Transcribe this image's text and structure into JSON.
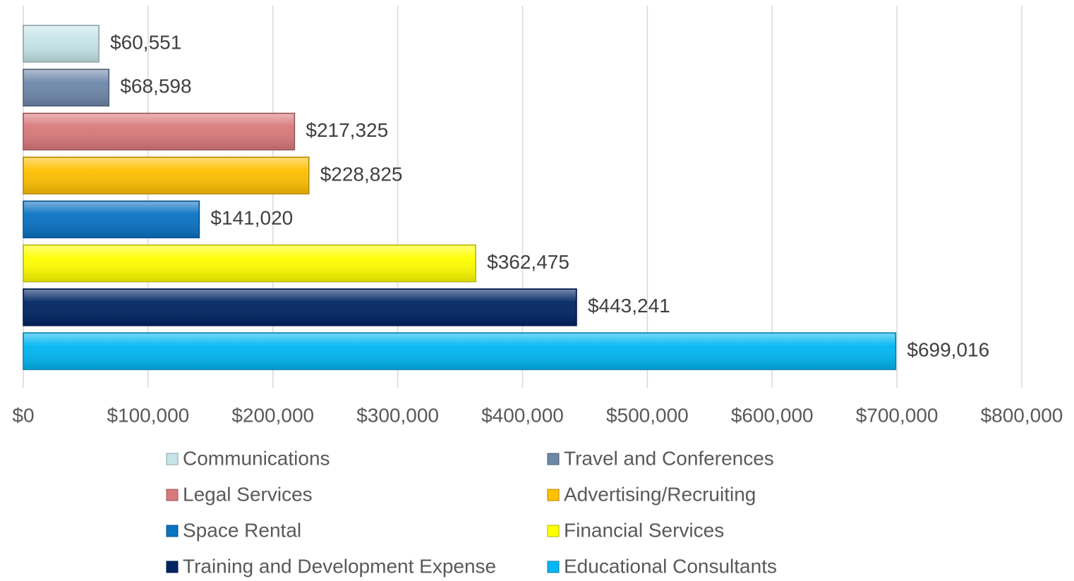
{
  "chart_data": {
    "type": "bar",
    "orientation": "horizontal",
    "series": [
      {
        "name": "Communications",
        "color": "#c6e5e8",
        "values": [
          60551
        ],
        "value_labels": [
          "$60,551"
        ]
      },
      {
        "name": "Travel and Conferences",
        "color": "#6e87a9",
        "values": [
          68598
        ],
        "value_labels": [
          "$68,598"
        ]
      },
      {
        "name": "Legal Services",
        "color": "#d9797b",
        "values": [
          217325
        ],
        "value_labels": [
          "$217,325"
        ]
      },
      {
        "name": "Advertising/Recruiting",
        "color": "#ffc000",
        "values": [
          228825
        ],
        "value_labels": [
          "$228,825"
        ]
      },
      {
        "name": "Space Rental",
        "color": "#0a72c2",
        "values": [
          141020
        ],
        "value_labels": [
          "$141,020"
        ]
      },
      {
        "name": "Financial Services",
        "color": "#ffff00",
        "values": [
          362475
        ],
        "value_labels": [
          "$362,475"
        ]
      },
      {
        "name": "Training and Development Expense",
        "color": "#002463",
        "values": [
          443241
        ],
        "value_labels": [
          "$443,241"
        ]
      },
      {
        "name": "Educational Consultants",
        "color": "#00b6f2",
        "values": [
          699016
        ],
        "value_labels": [
          "$699,016"
        ]
      }
    ],
    "xlim": [
      0,
      800000
    ],
    "xticks": [
      {
        "value": 0,
        "label": "$0"
      },
      {
        "value": 100000,
        "label": "$100,000"
      },
      {
        "value": 200000,
        "label": "$200,000"
      },
      {
        "value": 300000,
        "label": "$300,000"
      },
      {
        "value": 400000,
        "label": "$400,000"
      },
      {
        "value": 500000,
        "label": "$500,000"
      },
      {
        "value": 600000,
        "label": "$600,000"
      },
      {
        "value": 700000,
        "label": "$700,000"
      },
      {
        "value": 800000,
        "label": "$800,000"
      }
    ],
    "grid": true,
    "legend": "bottom"
  }
}
